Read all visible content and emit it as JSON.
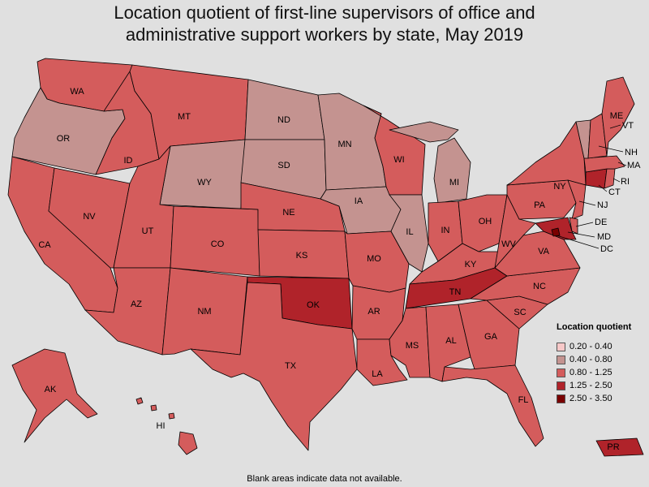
{
  "title_line1": "Location quotient of first-line supervisors of office and",
  "title_line2": "administrative support workers by state, May 2019",
  "footnote": "Blank areas indicate data not available.",
  "legend": {
    "title": "Location quotient",
    "items": [
      {
        "label": "0.20 - 0.40",
        "color": "#f7c8c8"
      },
      {
        "label": "0.40 - 0.80",
        "color": "#c49390"
      },
      {
        "label": "0.80 - 1.25",
        "color": "#d45c5c"
      },
      {
        "label": "1.25 - 2.50",
        "color": "#b0232a"
      },
      {
        "label": "2.50 - 3.50",
        "color": "#7a0000"
      }
    ]
  },
  "colors": {
    "background": "#e0e0e0",
    "border": "#000000"
  },
  "states": [
    {
      "code": "WA",
      "bin": 2
    },
    {
      "code": "OR",
      "bin": 1
    },
    {
      "code": "CA",
      "bin": 2
    },
    {
      "code": "NV",
      "bin": 2
    },
    {
      "code": "ID",
      "bin": 2
    },
    {
      "code": "MT",
      "bin": 2
    },
    {
      "code": "WY",
      "bin": 1
    },
    {
      "code": "UT",
      "bin": 2
    },
    {
      "code": "AZ",
      "bin": 2
    },
    {
      "code": "CO",
      "bin": 2
    },
    {
      "code": "NM",
      "bin": 2
    },
    {
      "code": "ND",
      "bin": 1
    },
    {
      "code": "SD",
      "bin": 1
    },
    {
      "code": "NE",
      "bin": 2
    },
    {
      "code": "KS",
      "bin": 2
    },
    {
      "code": "OK",
      "bin": 3
    },
    {
      "code": "TX",
      "bin": 2
    },
    {
      "code": "MN",
      "bin": 1
    },
    {
      "code": "IA",
      "bin": 1
    },
    {
      "code": "MO",
      "bin": 2
    },
    {
      "code": "AR",
      "bin": 2
    },
    {
      "code": "LA",
      "bin": 2
    },
    {
      "code": "WI",
      "bin": 2
    },
    {
      "code": "IL",
      "bin": 1
    },
    {
      "code": "MI",
      "bin": 1
    },
    {
      "code": "IN",
      "bin": 2
    },
    {
      "code": "OH",
      "bin": 2
    },
    {
      "code": "KY",
      "bin": 2
    },
    {
      "code": "TN",
      "bin": 3
    },
    {
      "code": "MS",
      "bin": 2
    },
    {
      "code": "AL",
      "bin": 2
    },
    {
      "code": "GA",
      "bin": 2
    },
    {
      "code": "FL",
      "bin": 2
    },
    {
      "code": "SC",
      "bin": 2
    },
    {
      "code": "NC",
      "bin": 2
    },
    {
      "code": "VA",
      "bin": 2
    },
    {
      "code": "WV",
      "bin": 2
    },
    {
      "code": "PA",
      "bin": 2
    },
    {
      "code": "NY",
      "bin": 2
    },
    {
      "code": "NJ",
      "bin": 2
    },
    {
      "code": "DE",
      "bin": 2
    },
    {
      "code": "MD",
      "bin": 3
    },
    {
      "code": "DC",
      "bin": 4
    },
    {
      "code": "CT",
      "bin": 3
    },
    {
      "code": "RI",
      "bin": 2
    },
    {
      "code": "MA",
      "bin": 2
    },
    {
      "code": "VT",
      "bin": 1
    },
    {
      "code": "NH",
      "bin": 2
    },
    {
      "code": "ME",
      "bin": 2
    },
    {
      "code": "AK",
      "bin": 2
    },
    {
      "code": "HI",
      "bin": 2
    },
    {
      "code": "PR",
      "bin": 3
    }
  ]
}
